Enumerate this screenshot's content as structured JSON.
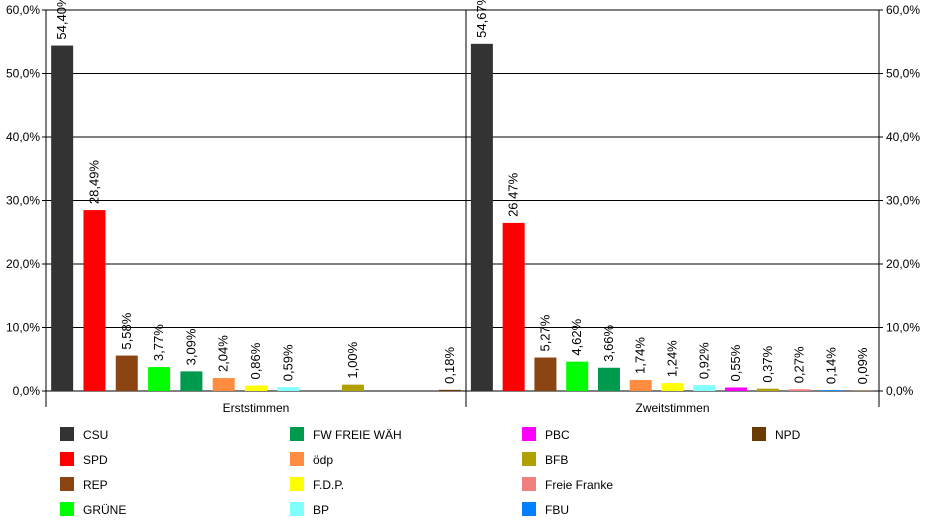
{
  "chart_data": {
    "type": "bar",
    "y_ticks": [
      "0,0%",
      "10,0%",
      "20,0%",
      "30,0%",
      "40,0%",
      "50,0%",
      "60,0%"
    ],
    "ylim": [
      0,
      60
    ],
    "grid": true,
    "legend_position": "bottom",
    "groups": [
      {
        "label": "Erststimmen",
        "bars": [
          {
            "party": "CSU",
            "value": 54.4,
            "label": "54,40%"
          },
          {
            "party": "SPD",
            "value": 28.49,
            "label": "28,49%"
          },
          {
            "party": "REP",
            "value": 5.58,
            "label": "5,58%"
          },
          {
            "party": "GRÜNE",
            "value": 3.77,
            "label": "3,77%"
          },
          {
            "party": "FW FREIE WÄH",
            "value": 3.09,
            "label": "3,09%"
          },
          {
            "party": "ödp",
            "value": 2.04,
            "label": "2,04%"
          },
          {
            "party": "F.D.P.",
            "value": 0.86,
            "label": "0,86%"
          },
          {
            "party": "BP",
            "value": 0.59,
            "label": "0,59%"
          },
          {
            "party": "PBC",
            "value": null,
            "label": ""
          },
          {
            "party": "BFB",
            "value": 1.0,
            "label": "1,00%"
          },
          {
            "party": "Freie Franke",
            "value": null,
            "label": ""
          },
          {
            "party": "FBU",
            "value": null,
            "label": ""
          },
          {
            "party": "NPD",
            "value": 0.18,
            "label": "0,18%"
          }
        ]
      },
      {
        "label": "Zweitstimmen",
        "bars": [
          {
            "party": "CSU",
            "value": 54.67,
            "label": "54,67%"
          },
          {
            "party": "SPD",
            "value": 26.47,
            "label": "26,47%"
          },
          {
            "party": "REP",
            "value": 5.27,
            "label": "5,27%"
          },
          {
            "party": "GRÜNE",
            "value": 4.62,
            "label": "4,62%"
          },
          {
            "party": "FW FREIE WÄH",
            "value": 3.66,
            "label": "3,66%"
          },
          {
            "party": "ödp",
            "value": 1.74,
            "label": "1,74%"
          },
          {
            "party": "F.D.P.",
            "value": 1.24,
            "label": "1,24%"
          },
          {
            "party": "BP",
            "value": 0.92,
            "label": "0,92%"
          },
          {
            "party": "PBC",
            "value": 0.55,
            "label": "0,55%"
          },
          {
            "party": "BFB",
            "value": 0.37,
            "label": "0,37%"
          },
          {
            "party": "Freie Franke",
            "value": 0.27,
            "label": "0,27%"
          },
          {
            "party": "FBU",
            "value": 0.14,
            "label": "0,14%"
          },
          {
            "party": "NPD",
            "value": 0.09,
            "label": "0,09%"
          }
        ]
      }
    ],
    "legend": [
      {
        "name": "CSU",
        "color": "#333333"
      },
      {
        "name": "SPD",
        "color": "#ff0000"
      },
      {
        "name": "REP",
        "color": "#8b4513"
      },
      {
        "name": "GRÜNE",
        "color": "#00ff00"
      },
      {
        "name": "FW FREIE WÄH",
        "color": "#009a4e"
      },
      {
        "name": "ödp",
        "color": "#ff8c40"
      },
      {
        "name": "F.D.P.",
        "color": "#ffff00"
      },
      {
        "name": "BP",
        "color": "#80ffff"
      },
      {
        "name": "PBC",
        "color": "#ff00ff"
      },
      {
        "name": "BFB",
        "color": "#b0a000"
      },
      {
        "name": "Freie Franke",
        "color": "#f08080"
      },
      {
        "name": "FBU",
        "color": "#0080ff"
      },
      {
        "name": "NPD",
        "color": "#6b3a00"
      }
    ]
  }
}
